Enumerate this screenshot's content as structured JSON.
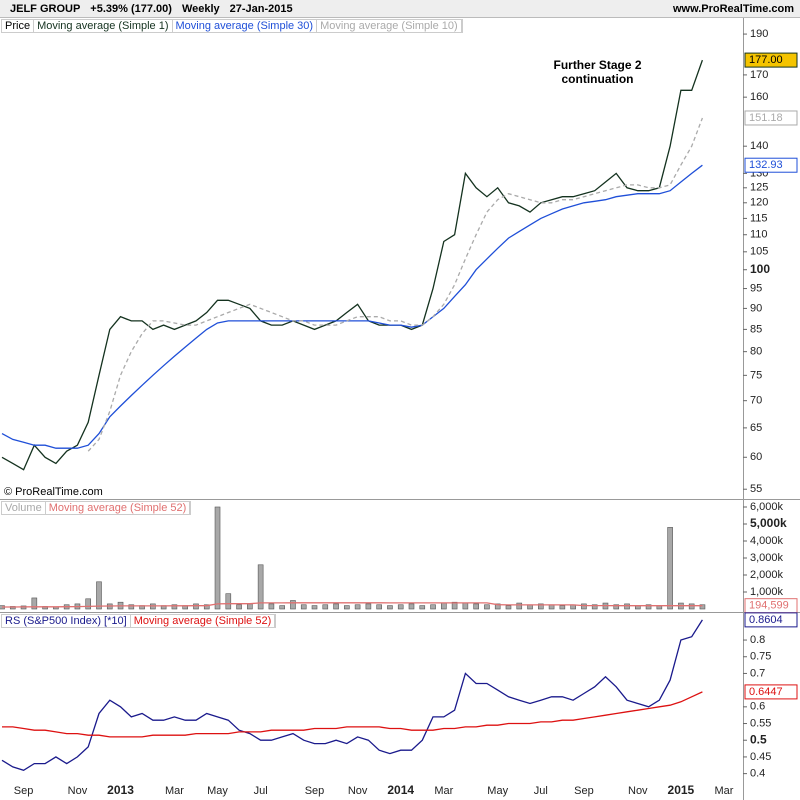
{
  "header": {
    "symbol": "JELF GROUP",
    "change": "+5.39% (177.00)",
    "period": "Weekly",
    "date": "27-Jan-2015",
    "site": "www.ProRealTime.com"
  },
  "annotation": "Further Stage 2 continuation",
  "copyright": "© ProRealTime.com",
  "chart_data": [
    {
      "type": "line",
      "label": "Price",
      "log_scale": true,
      "major_tick": 100,
      "ylim": [
        53.7,
        198.5
      ],
      "yticks": [
        55,
        60,
        65,
        70,
        75,
        80,
        85,
        90,
        95,
        100,
        105,
        110,
        115,
        120,
        125,
        130,
        140,
        160,
        170,
        190
      ],
      "series": [
        {
          "name": "Moving average (Simple 1)",
          "color": "#14321f",
          "last_value_box": true,
          "label_fill": "#f5c400",
          "values": [
            60,
            59,
            58,
            62,
            60,
            59,
            61,
            62,
            66,
            75,
            85,
            88,
            87,
            87,
            85,
            86,
            85,
            86,
            87,
            89,
            92,
            92,
            91,
            90,
            87,
            86,
            86,
            87,
            86,
            85,
            86,
            87,
            89,
            91,
            87,
            86,
            86,
            86,
            85,
            86,
            95,
            108,
            110,
            130,
            125,
            122,
            125,
            120,
            119,
            117,
            120,
            121,
            122,
            122,
            123,
            124,
            127,
            130,
            125,
            124,
            124,
            125,
            140,
            163,
            163,
            177,
            null,
            null
          ],
          "value_labels": [
            null,
            null,
            null,
            null,
            null,
            null,
            null,
            null,
            null,
            null,
            null,
            null,
            null,
            null,
            null,
            null,
            null,
            null,
            null,
            null,
            null,
            null,
            null,
            null,
            null,
            null,
            null,
            null,
            null,
            null,
            null,
            null,
            null,
            null,
            null,
            null,
            null,
            null,
            null,
            null,
            null,
            null,
            null,
            null,
            null,
            null,
            null,
            null,
            null,
            null,
            null,
            null,
            null,
            null,
            null,
            null,
            null,
            null,
            null,
            null,
            null,
            null,
            null,
            null,
            null,
            "177.00",
            null,
            null
          ]
        },
        {
          "name": "Moving average (Simple 30)",
          "color": "#1f4fd8",
          "last_value_box": true,
          "values": [
            64,
            63,
            62.5,
            62,
            62,
            61.5,
            61.5,
            61.5,
            62,
            64,
            67,
            69,
            71,
            73,
            75,
            77,
            79,
            81,
            83,
            85,
            86.5,
            87,
            87,
            87,
            87,
            87,
            87,
            87,
            87,
            87,
            87,
            87,
            87,
            87,
            87,
            86.5,
            86,
            86,
            85.5,
            86,
            88,
            90,
            93,
            96,
            100,
            103,
            106,
            109,
            111,
            113,
            115,
            116.5,
            118,
            119,
            120,
            120.5,
            121,
            122,
            122.5,
            123,
            123,
            123,
            124,
            127,
            130,
            132.93,
            null,
            null
          ]
        },
        {
          "name": "Moving average (Simple 10)",
          "color": "#aaaaaa",
          "dash": true,
          "last_value_box": true,
          "values": [
            null,
            null,
            null,
            null,
            null,
            null,
            null,
            null,
            61,
            63,
            68,
            75,
            80,
            84,
            87,
            87,
            86.5,
            86,
            86,
            87,
            88,
            89,
            90,
            91,
            90,
            89,
            88,
            87,
            87,
            86,
            86,
            86,
            87,
            88,
            88,
            88,
            87,
            87,
            86,
            86,
            88,
            91,
            96,
            103,
            110,
            117,
            121,
            123,
            122,
            121,
            120,
            120,
            121,
            121,
            122,
            123,
            124,
            125,
            126,
            126,
            125,
            125,
            126,
            133,
            140,
            151.18,
            null,
            null
          ]
        }
      ]
    },
    {
      "type": "bar",
      "major_tick": 5000000,
      "ylim": [
        0,
        6470000
      ],
      "yticks": [
        {
          "value": 1000000,
          "label": "1,000k"
        },
        {
          "value": 2000000,
          "label": "2,000k"
        },
        {
          "value": 3000000,
          "label": "3,000k"
        },
        {
          "value": 4000000,
          "label": "4,000k"
        },
        {
          "value": 5000000,
          "label": "5,000k"
        },
        {
          "value": 6000000,
          "label": "6,000k"
        }
      ],
      "series": [
        {
          "name": "Volume",
          "color": "#a8a8a8",
          "values": [
            200000,
            150000,
            180000,
            650000,
            150000,
            120000,
            250000,
            300000,
            600000,
            1600000,
            300000,
            400000,
            250000,
            200000,
            300000,
            200000,
            250000,
            200000,
            300000,
            250000,
            6000000,
            900000,
            250000,
            300000,
            2600000,
            300000,
            200000,
            500000,
            250000,
            200000,
            250000,
            300000,
            200000,
            250000,
            300000,
            250000,
            200000,
            250000,
            300000,
            200000,
            250000,
            350000,
            400000,
            350000,
            300000,
            250000,
            300000,
            200000,
            350000,
            250000,
            300000,
            250000,
            200000,
            250000,
            300000,
            250000,
            350000,
            250000,
            300000,
            200000,
            250000,
            200000,
            4800000,
            350000,
            300000,
            250000,
            null,
            null
          ]
        },
        {
          "name": "Moving average (Simple 52)",
          "type": "line",
          "color": "#e07070",
          "last_value_box": true,
          "values": [
            120000,
            120000,
            125000,
            130000,
            130000,
            130000,
            135000,
            140000,
            150000,
            170000,
            175000,
            180000,
            180000,
            185000,
            185000,
            185000,
            190000,
            190000,
            195000,
            195000,
            300000,
            310000,
            310000,
            310000,
            360000,
            360000,
            360000,
            365000,
            365000,
            365000,
            365000,
            365000,
            365000,
            365000,
            365000,
            365000,
            360000,
            360000,
            360000,
            360000,
            360000,
            360000,
            360000,
            360000,
            360000,
            360000,
            250000,
            240000,
            240000,
            240000,
            240000,
            240000,
            240000,
            240000,
            200000,
            200000,
            200000,
            195000,
            195000,
            195000,
            195000,
            195000,
            195000,
            195000,
            195000,
            194599,
            null,
            null
          ],
          "value_labels": [
            null,
            null,
            null,
            null,
            null,
            null,
            null,
            null,
            null,
            null,
            null,
            null,
            null,
            null,
            null,
            null,
            null,
            null,
            null,
            null,
            null,
            null,
            null,
            null,
            null,
            null,
            null,
            null,
            null,
            null,
            null,
            null,
            null,
            null,
            null,
            null,
            null,
            null,
            null,
            null,
            null,
            null,
            null,
            null,
            null,
            null,
            null,
            null,
            null,
            null,
            null,
            null,
            null,
            null,
            null,
            null,
            null,
            null,
            null,
            null,
            null,
            null,
            null,
            null,
            null,
            "194,599",
            null,
            null
          ]
        }
      ]
    },
    {
      "type": "line",
      "major_tick": 0.5,
      "ylim": [
        0.33,
        0.875
      ],
      "yticks": [
        0.4,
        0.45,
        0.5,
        0.55,
        0.6,
        0.7,
        0.75,
        0.8
      ],
      "categories": [
        null,
        null,
        "Sep",
        null,
        null,
        null,
        null,
        "Nov",
        null,
        null,
        null,
        "2013",
        null,
        null,
        null,
        null,
        "Mar",
        null,
        null,
        null,
        "May",
        null,
        null,
        null,
        "Jul",
        null,
        null,
        null,
        null,
        "Sep",
        null,
        null,
        null,
        "Nov",
        null,
        null,
        null,
        "2014",
        null,
        null,
        null,
        "Mar",
        null,
        null,
        null,
        null,
        "May",
        null,
        null,
        null,
        "Jul",
        null,
        null,
        null,
        "Sep",
        null,
        null,
        null,
        null,
        "Nov",
        null,
        null,
        null,
        "2015",
        null,
        null,
        null,
        "Mar"
      ],
      "series": [
        {
          "name": "RS (S&P500 Index) [*10]",
          "color": "#1a1a8c",
          "last_value_box": true,
          "values": [
            0.44,
            0.42,
            0.41,
            0.43,
            0.43,
            0.45,
            0.43,
            0.45,
            0.48,
            0.58,
            0.62,
            0.6,
            0.57,
            0.58,
            0.56,
            0.56,
            0.57,
            0.56,
            0.56,
            0.58,
            0.57,
            0.56,
            0.53,
            0.52,
            0.5,
            0.5,
            0.51,
            0.52,
            0.5,
            0.49,
            0.49,
            0.5,
            0.49,
            0.51,
            0.5,
            0.47,
            0.46,
            0.47,
            0.47,
            0.5,
            0.57,
            0.57,
            0.59,
            0.7,
            0.67,
            0.67,
            0.65,
            0.63,
            0.62,
            0.61,
            0.62,
            0.63,
            0.63,
            0.62,
            0.64,
            0.66,
            0.69,
            0.66,
            0.62,
            0.61,
            0.6,
            0.62,
            0.68,
            0.8,
            0.81,
            0.8604,
            null,
            null
          ]
        },
        {
          "name": "Moving average (Simple 52)",
          "color": "#dd1111",
          "last_value_box": true,
          "values": [
            0.54,
            0.54,
            0.535,
            0.53,
            0.53,
            0.525,
            0.52,
            0.52,
            0.515,
            0.515,
            0.51,
            0.51,
            0.51,
            0.51,
            0.515,
            0.515,
            0.515,
            0.515,
            0.52,
            0.52,
            0.52,
            0.52,
            0.525,
            0.525,
            0.525,
            0.53,
            0.53,
            0.53,
            0.53,
            0.535,
            0.535,
            0.535,
            0.54,
            0.54,
            0.54,
            0.54,
            0.535,
            0.535,
            0.53,
            0.53,
            0.53,
            0.535,
            0.535,
            0.54,
            0.54,
            0.545,
            0.545,
            0.55,
            0.55,
            0.55,
            0.555,
            0.555,
            0.56,
            0.56,
            0.565,
            0.57,
            0.575,
            0.58,
            0.585,
            0.59,
            0.595,
            0.6,
            0.605,
            0.615,
            0.63,
            0.6447,
            null,
            null
          ]
        }
      ]
    }
  ]
}
